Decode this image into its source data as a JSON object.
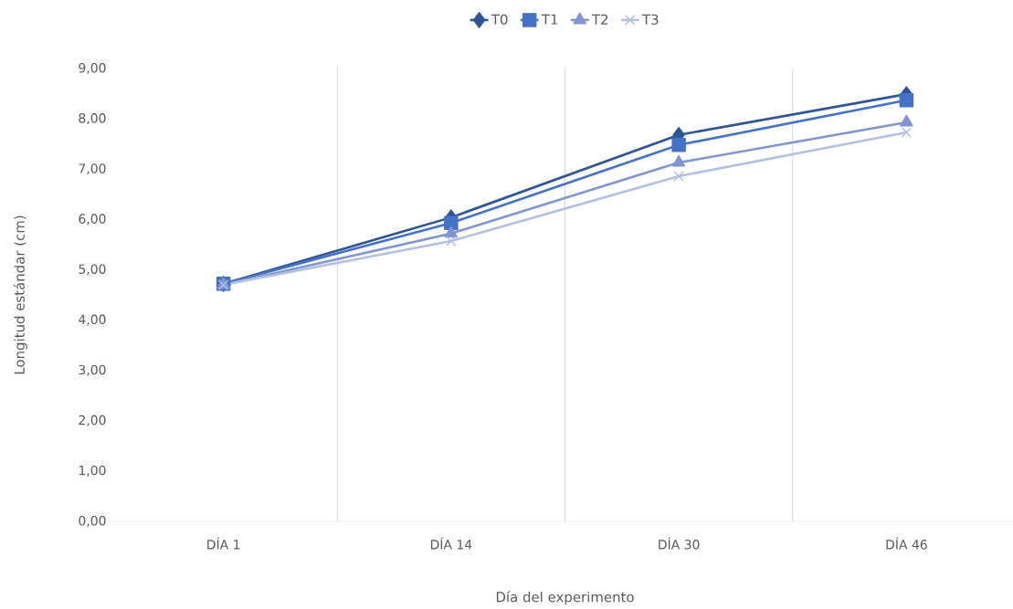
{
  "chart_data": {
    "type": "line",
    "xlabel": "Día del experimento",
    "ylabel": "Longitud estándar (cm)",
    "categories": [
      "DÍA 1",
      "DÍA 14",
      "DÍA 30",
      "DÍA 46"
    ],
    "series": [
      {
        "name": "T0",
        "color": "#2f5597",
        "marker": "diamond",
        "values": [
          4.72,
          6.04,
          7.68,
          8.49
        ]
      },
      {
        "name": "T1",
        "color": "#4472c4",
        "marker": "square",
        "values": [
          4.72,
          5.93,
          7.48,
          8.37
        ]
      },
      {
        "name": "T2",
        "color": "#7f96d2",
        "marker": "triangle",
        "values": [
          4.7,
          5.72,
          7.13,
          7.93
        ]
      },
      {
        "name": "T3",
        "color": "#b4c0e2",
        "marker": "cross",
        "values": [
          4.7,
          5.57,
          6.86,
          7.73
        ]
      }
    ],
    "ylim": [
      0,
      9
    ],
    "yticks": [
      {
        "value": 0,
        "label": "0,00"
      },
      {
        "value": 1,
        "label": "1,00"
      },
      {
        "value": 2,
        "label": "2,00"
      },
      {
        "value": 3,
        "label": "3,00"
      },
      {
        "value": 4,
        "label": "4,00"
      },
      {
        "value": 5,
        "label": "5,00"
      },
      {
        "value": 6,
        "label": "6,00"
      },
      {
        "value": 7,
        "label": "7,00"
      },
      {
        "value": 8,
        "label": "8,00"
      },
      {
        "value": 9,
        "label": "9,00"
      }
    ],
    "grid": "x",
    "legend": "top",
    "line_style": "solid"
  }
}
